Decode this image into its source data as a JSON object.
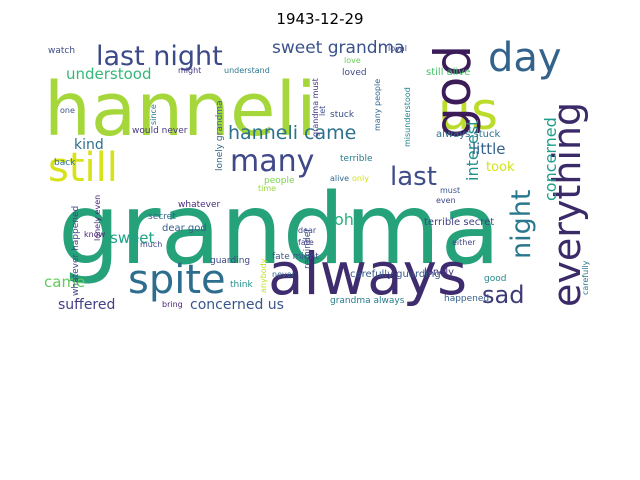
{
  "title": "1943-12-29",
  "words": [
    {
      "text": "grandma",
      "color": "#26a27a"
    },
    {
      "text": "hanneli",
      "color": "#a5d73a"
    },
    {
      "text": "always",
      "color": "#3e2c6e"
    },
    {
      "text": "us",
      "color": "#bcdc2c"
    },
    {
      "text": "god",
      "color": "#3b1c59"
    },
    {
      "text": "day",
      "color": "#33638b"
    },
    {
      "text": "spite",
      "color": "#2d6e8e"
    },
    {
      "text": "everything",
      "color": "#3b2a68"
    },
    {
      "text": "still",
      "color": "#d8e219"
    },
    {
      "text": "last night",
      "color": "#3d4a89"
    },
    {
      "text": "many",
      "color": "#3f4888"
    },
    {
      "text": "night",
      "color": "#2a788e"
    },
    {
      "text": "last",
      "color": "#3e4c8a"
    },
    {
      "text": "sad",
      "color": "#3d3c77"
    },
    {
      "text": "hanneli came",
      "color": "#2c718e"
    },
    {
      "text": "sweet grandma",
      "color": "#3a528b"
    },
    {
      "text": "understood",
      "color": "#35b779"
    },
    {
      "text": "interest",
      "color": "#21918c"
    },
    {
      "text": "concerned",
      "color": "#1f9e89"
    },
    {
      "text": "concerned us",
      "color": "#39568c"
    },
    {
      "text": "suffered",
      "color": "#433e85"
    },
    {
      "text": "came",
      "color": "#62cb5f"
    },
    {
      "text": "sweet",
      "color": "#1fa187"
    },
    {
      "text": "kind",
      "color": "#2e6f8e"
    },
    {
      "text": "oh",
      "color": "#2ab07f"
    },
    {
      "text": "took",
      "color": "#d2e21b"
    },
    {
      "text": "little",
      "color": "#34608d"
    },
    {
      "text": "still alive",
      "color": "#4ac16d"
    },
    {
      "text": "terrible secret",
      "color": "#424086"
    },
    {
      "text": "always stuck",
      "color": "#2d708e"
    },
    {
      "text": "carefully guarding",
      "color": "#38598c"
    },
    {
      "text": "lonely",
      "color": "#453581"
    },
    {
      "text": "whatever happened",
      "color": "#3f4889"
    },
    {
      "text": "dear god",
      "color": "#35608d"
    },
    {
      "text": "secret",
      "color": "#31668e"
    },
    {
      "text": "fate might",
      "color": "#3b528b"
    },
    {
      "text": "lonely grandma",
      "color": "#31678e"
    },
    {
      "text": "grandma always",
      "color": "#287c8e"
    },
    {
      "text": "happened",
      "color": "#355f8d"
    },
    {
      "text": "stuck",
      "color": "#3c4f8a"
    },
    {
      "text": "would never",
      "color": "#453882"
    },
    {
      "text": "loved",
      "color": "#3e4a89"
    },
    {
      "text": "reminder",
      "color": "#3b528b"
    },
    {
      "text": "terrible",
      "color": "#287d8e"
    },
    {
      "text": "whatever",
      "color": "#472d7b"
    },
    {
      "text": "guarding",
      "color": "#3e4989"
    },
    {
      "text": "people",
      "color": "#7ad151"
    },
    {
      "text": "understand",
      "color": "#2a788e"
    },
    {
      "text": "watch",
      "color": "#3e4a89"
    },
    {
      "text": "might",
      "color": "#453781"
    },
    {
      "text": "loyal",
      "color": "#3f4788"
    },
    {
      "text": "love",
      "color": "#6ccd5a"
    },
    {
      "text": "good",
      "color": "#238a8d"
    },
    {
      "text": "back",
      "color": "#2e6e8e"
    },
    {
      "text": "think",
      "color": "#21918c"
    },
    {
      "text": "know",
      "color": "#482374"
    },
    {
      "text": "much",
      "color": "#404688"
    },
    {
      "text": "dear",
      "color": "#3e4989"
    },
    {
      "text": "fate",
      "color": "#424086"
    },
    {
      "text": "never",
      "color": "#33638d"
    },
    {
      "text": "bring",
      "color": "#482576"
    },
    {
      "text": "even",
      "color": "#3f4788"
    },
    {
      "text": "either",
      "color": "#3f4889"
    },
    {
      "text": "must",
      "color": "#39568c"
    },
    {
      "text": "since",
      "color": "#2a778e"
    },
    {
      "text": "one",
      "color": "#3a548c"
    },
    {
      "text": "let",
      "color": "#3d4e8a"
    },
    {
      "text": "alive",
      "color": "#31678e"
    },
    {
      "text": "only",
      "color": "#d5e21a"
    },
    {
      "text": "lonely even",
      "color": "#482677"
    },
    {
      "text": "many people",
      "color": "#32648e"
    },
    {
      "text": "time",
      "color": "#97d83f"
    },
    {
      "text": "grandma must",
      "color": "#46337f"
    },
    {
      "text": "misunderstood",
      "color": "#25848e"
    },
    {
      "text": "carefully",
      "color": "#2b758e"
    },
    {
      "text": "anybody",
      "color": "#c0df25"
    }
  ]
}
